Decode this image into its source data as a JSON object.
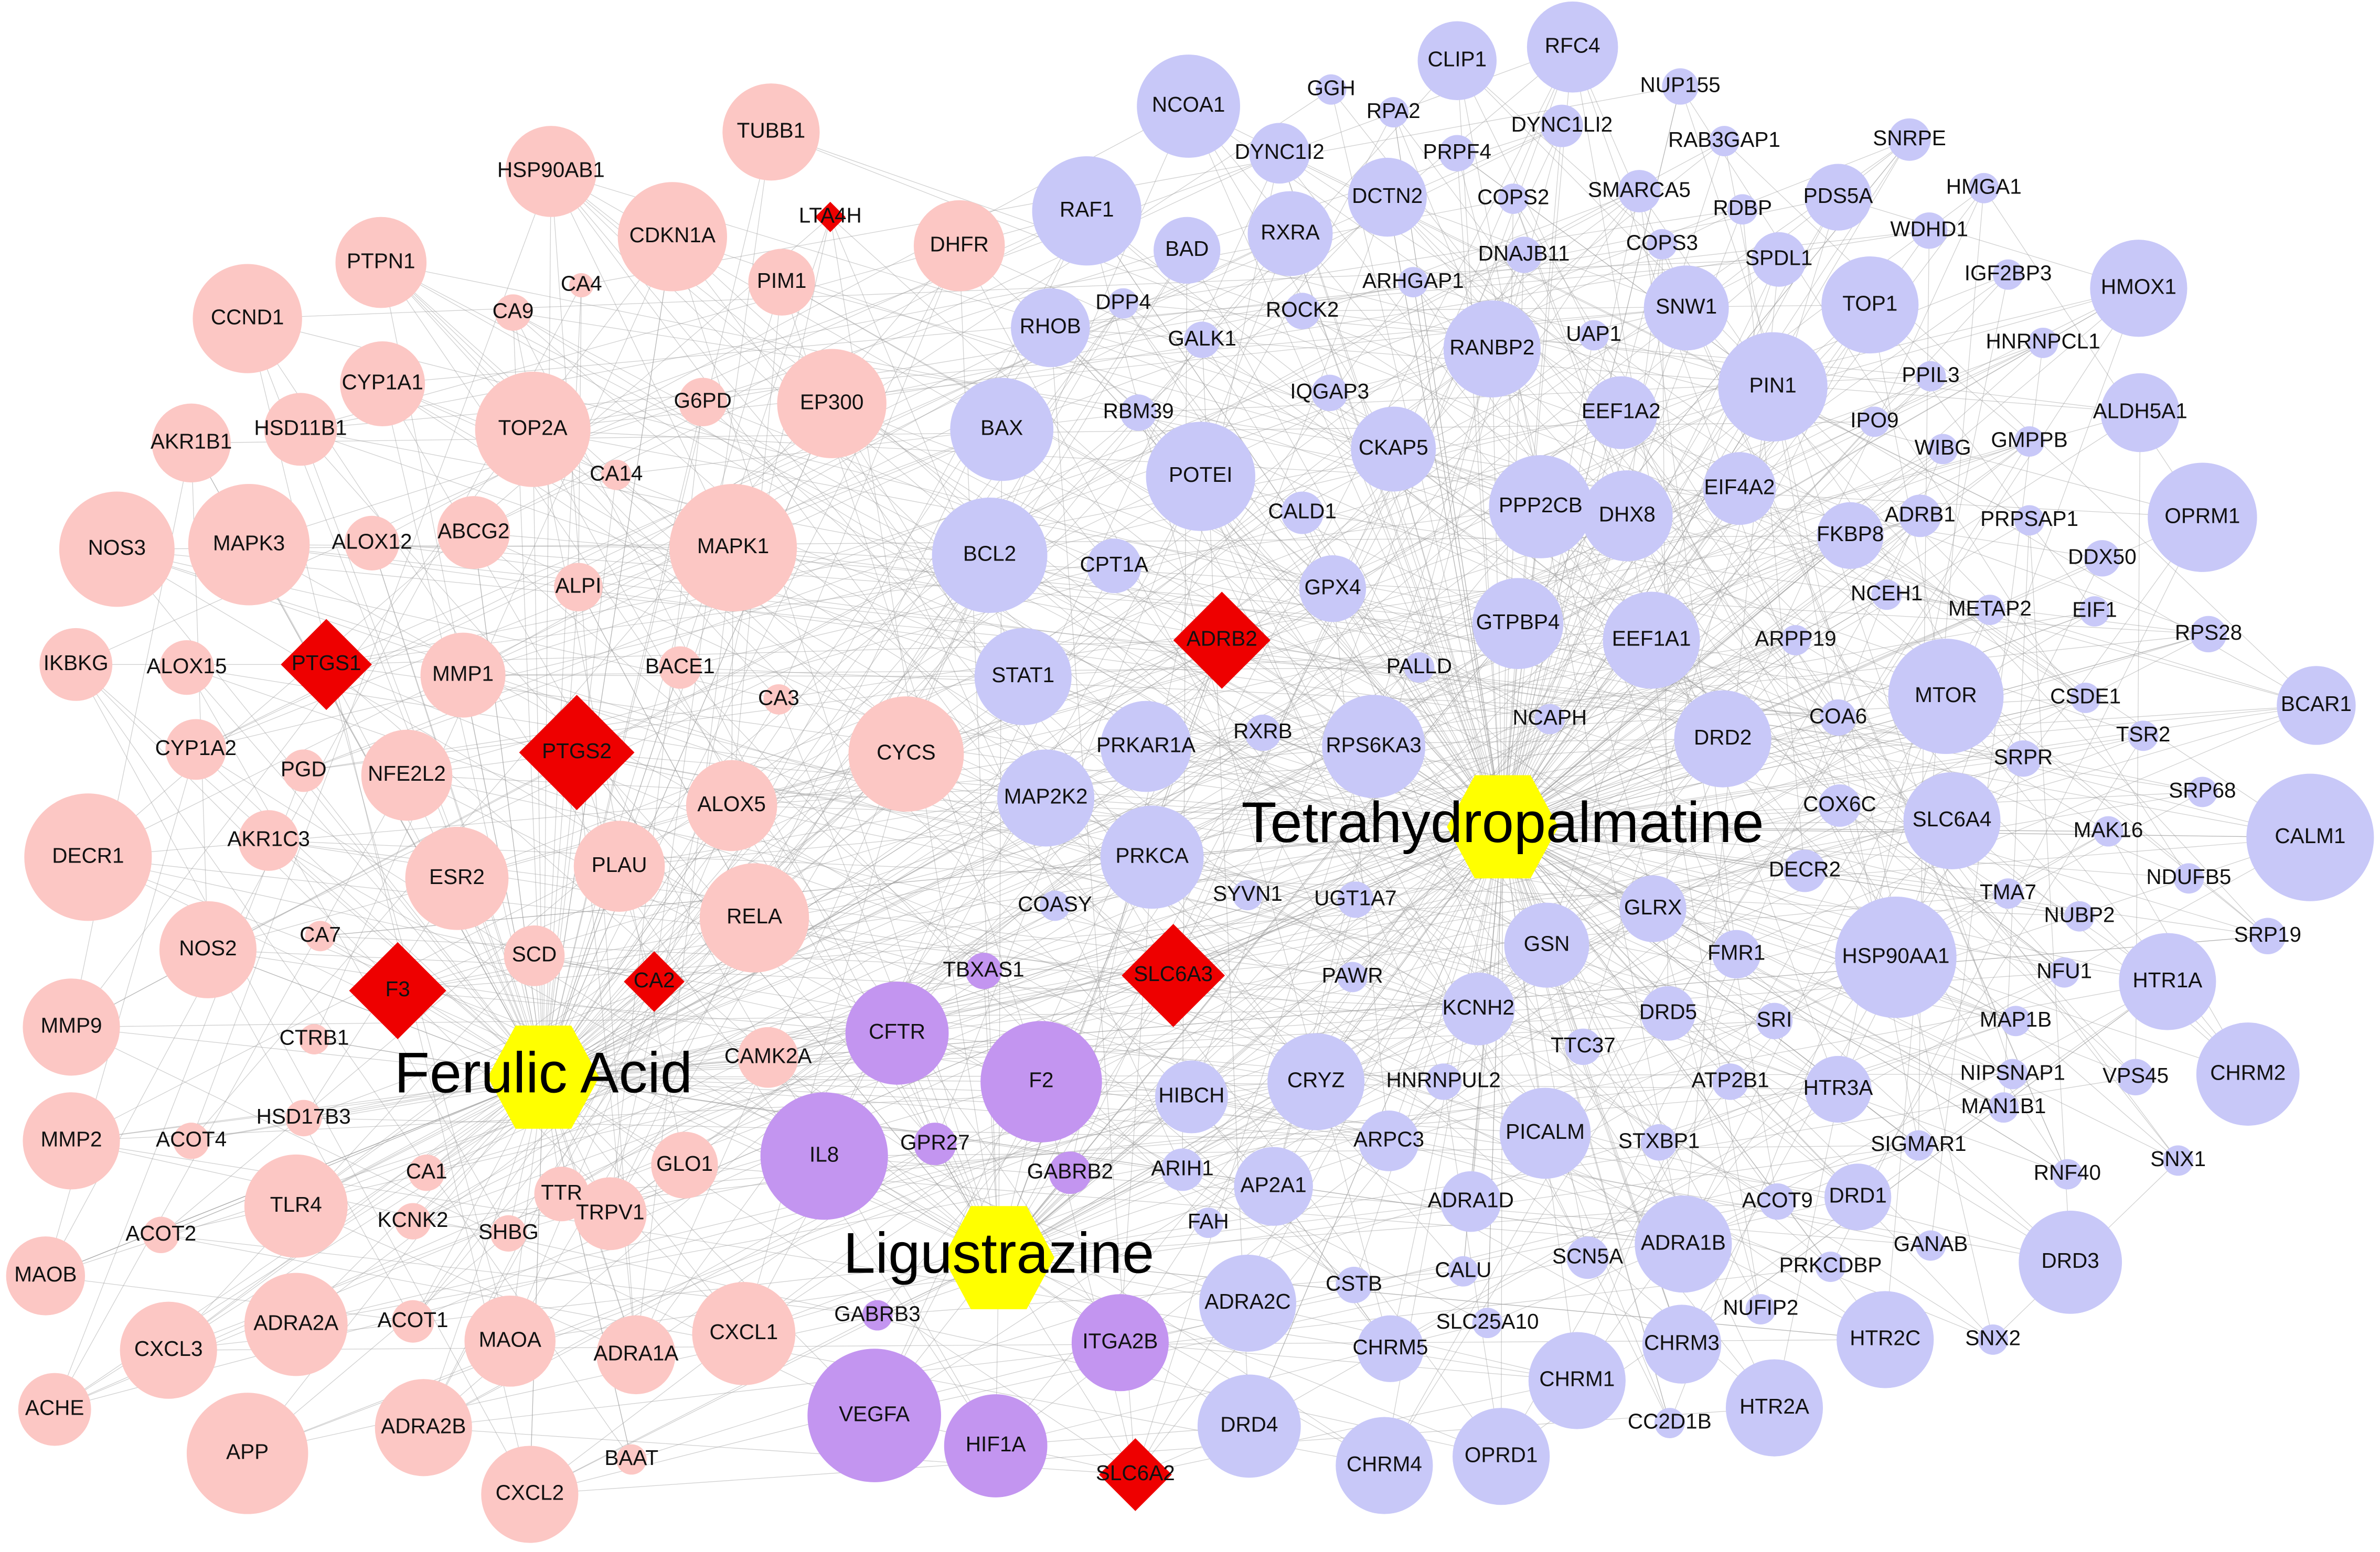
{
  "nodes": [
    "TUBB1",
    "HSP90AB1",
    "CDKN1A",
    "PIM1",
    "DHFR",
    "CA4",
    "CA9",
    "PTPN1",
    "CCND1",
    "CYP1A1",
    "HSD11B1",
    "AKR1B1",
    "TOP2A",
    "G6PD",
    "EP300",
    "CA14",
    "NOS3",
    "MAPK3",
    "ALOX12",
    "ABCG2",
    "ALPI",
    "MAPK1",
    "IKBKG",
    "ALOX15",
    "MMP1",
    "BACE1",
    "CA3",
    "CYP1A2",
    "PGD",
    "NFE2L2",
    "CYCS",
    "ALOX5",
    "DECR1",
    "AKR1C3",
    "ESR2",
    "PLAU",
    "RELA",
    "NOS2",
    "CA7",
    "SCD",
    "MMP9",
    "CTRB1",
    "CAMK2A",
    "MMP2",
    "HSD17B3",
    "ACOT4",
    "TLR4",
    "CA1",
    "TTR",
    "GLO1",
    "KCNK2",
    "SHBG",
    "TRPV1",
    "ACOT2",
    "MAOB",
    "CXCL3",
    "ADRA2A",
    "ACOT1",
    "MAOA",
    "ADRA1A",
    "CXCL1",
    "ACHE",
    "APP",
    "ADRA2B",
    "BAAT",
    "CXCL2",
    "LTA4H",
    "PTGS1",
    "PTGS2",
    "ADRB2",
    "F3",
    "CA2",
    "SLC6A3",
    "SLC6A2",
    "Ferulic Acid",
    "Tetrahydropalmatine",
    "Ligustrazine",
    "TBXAS1",
    "CFTR",
    "F2",
    "IL8",
    "GPR27",
    "GABRB2",
    "GABRB3",
    "ITGA2B",
    "VEGFA",
    "HIF1A",
    "CLIP1",
    "RFC4",
    "NCOA1",
    "GGH",
    "RPA2",
    "NUP155",
    "DYNC1LI2",
    "DYNC1I2",
    "PRPF4",
    "RAB3GAP1",
    "SNRPE",
    "RAF1",
    "DCTN2",
    "COPS2",
    "SMARCA5",
    "PDS5A",
    "HMGA1",
    "BAD",
    "RXRA",
    "RDBP",
    "WDHD1",
    "DNAJB11",
    "COPS3",
    "SPDL1",
    "ARHGAP1",
    "DPP4",
    "TOP1",
    "HMOX1",
    "IGF2BP3",
    "RHOB",
    "ROCK2",
    "SNW1",
    "GALK1",
    "RANBP2",
    "UAP1",
    "HNRNPCL1",
    "PIN1",
    "PPIL3",
    "RBM39",
    "IQGAP3",
    "EEF1A2",
    "IPO9",
    "ALDH5A1",
    "BAX",
    "CKAP5",
    "WIBG",
    "GMPPB",
    "POTEI",
    "EIF4A2",
    "PPP2CB",
    "DHX8",
    "FKBP8",
    "ADRB1",
    "PRPSAP1",
    "OPRM1",
    "CALD1",
    "BCL2",
    "CPT1A",
    "DDX50",
    "GPX4",
    "NCEH1",
    "METAP2",
    "EIF1",
    "GTPBP4",
    "EEF1A1",
    "ARPP19",
    "RPS28",
    "PALLD",
    "STAT1",
    "MTOR",
    "CSDE1",
    "BCAR1",
    "PRKAR1A",
    "RXRB",
    "RPS6KA3",
    "NCAPH",
    "DRD2",
    "COA6",
    "SRPR",
    "TSR2",
    "MAP2K2",
    "COX6C",
    "SLC6A4",
    "SRP68",
    "CALM1",
    "PRKCA",
    "DECR2",
    "MAK16",
    "NDUFB5",
    "COASY",
    "SYVN1",
    "UGT1A7",
    "GLRX",
    "TMA7",
    "NUBP2",
    "SRP19",
    "GSN",
    "HSP90AA1",
    "FMR1",
    "PAWR",
    "NFU1",
    "HTR1A",
    "KCNH2",
    "DRD5",
    "SRI",
    "MAP1B",
    "TTC37",
    "CRYZ",
    "HNRNPUL2",
    "ATP2B1",
    "HIBCH",
    "HTR3A",
    "NIPSNAP1",
    "VPS45",
    "CHRM2",
    "ARPC3",
    "PICALM",
    "MAN1B1",
    "ARIH1",
    "AP2A1",
    "STXBP1",
    "SIGMAR1",
    "ADRA1D",
    "ACOT9",
    "DRD1",
    "RNF40",
    "SNX1",
    "FAH",
    "ADRA1B",
    "SCN5A",
    "PRKCDBP",
    "GANAB",
    "DRD3",
    "CALU",
    "CSTB",
    "ADRA2C",
    "NUFIP2",
    "SLC25A10",
    "CHRM5",
    "CHRM3",
    "HTR2C",
    "SNX2",
    "CHRM1",
    "CC2D1B",
    "HTR2A",
    "DRD4",
    "CHRM4",
    "OPRD1"
  ]
}
